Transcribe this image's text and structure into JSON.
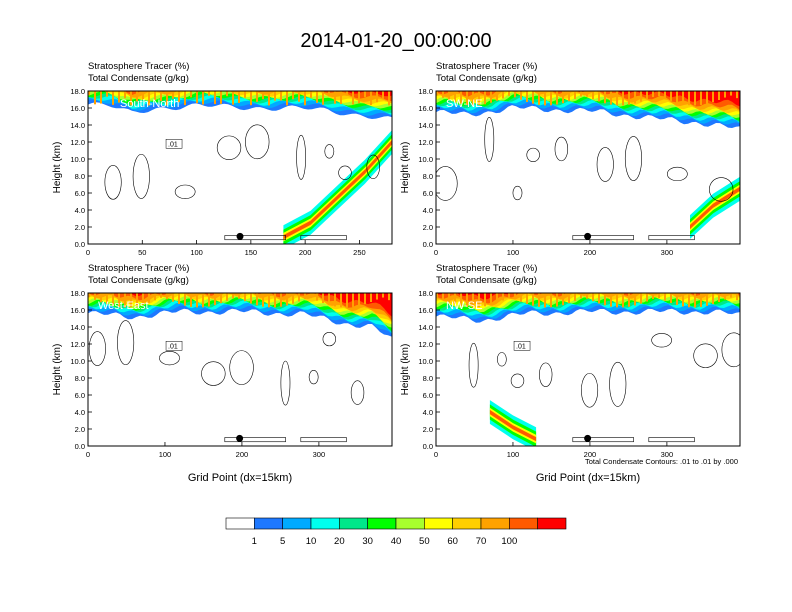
{
  "title": "2014-01-20_00:00:00",
  "colors": {
    "levels": [
      "#ffffff",
      "#1e78ff",
      "#00aaff",
      "#00ffee",
      "#00e88a",
      "#00ff00",
      "#a8ff2e",
      "#ffff00",
      "#ffcf00",
      "#ffa200",
      "#ff5a00",
      "#ff0000"
    ],
    "contour": "#000000"
  },
  "colorbar": {
    "labels": [
      "1",
      "5",
      "10",
      "20",
      "30",
      "40",
      "50",
      "60",
      "70",
      "100"
    ]
  },
  "footnote": "Total Condensate Contours: .01 to .01 by .000",
  "chart_data": [
    {
      "type": "heatmap",
      "subtitle_line1": "Stratosphere Tracer   (%)",
      "subtitle_line2": "Total Condensate   (g/kg)",
      "label": "South-North",
      "ylabel": "Height (km)",
      "xlabel": "",
      "xlim": [
        0,
        280
      ],
      "ylim": [
        0,
        18
      ],
      "xticks": [
        "0",
        "50",
        "100",
        "150",
        "200",
        "250"
      ],
      "xtick_values": [
        0,
        50,
        100,
        150,
        200,
        250
      ],
      "yticks": [
        "0.0",
        "2.0",
        "4.0",
        "6.0",
        "8.0",
        "10.0",
        "12.0",
        "14.0",
        "16.0",
        "18.0"
      ],
      "tropopause_km": [
        [
          0,
          16.4
        ],
        [
          20,
          16.2
        ],
        [
          40,
          15.4
        ],
        [
          60,
          16.0
        ],
        [
          100,
          16.2
        ],
        [
          150,
          16.1
        ],
        [
          200,
          15.9
        ],
        [
          240,
          15.4
        ],
        [
          265,
          15.0
        ],
        [
          280,
          14.6
        ]
      ],
      "intrusion_km": [
        [
          180,
          0.8
        ],
        [
          205,
          2.5
        ],
        [
          230,
          5.5
        ],
        [
          255,
          8.5
        ],
        [
          280,
          12.0
        ]
      ],
      "contour_label": ".01",
      "marker": {
        "x": 140,
        "y": 0.9
      }
    },
    {
      "type": "heatmap",
      "subtitle_line1": "Stratosphere Tracer   (%)",
      "subtitle_line2": "Total Condensate   (g/kg)",
      "label": "SW-NE",
      "ylabel": "Height (km)",
      "xlabel": "",
      "xlim": [
        0,
        395
      ],
      "ylim": [
        0,
        18
      ],
      "xticks": [
        "0",
        "100",
        "200",
        "300"
      ],
      "xtick_values": [
        0,
        100,
        200,
        300
      ],
      "yticks": [
        "0.0",
        "2.0",
        "4.0",
        "6.0",
        "8.0",
        "10.0",
        "12.0",
        "14.0",
        "16.0",
        "18.0"
      ],
      "tropopause_km": [
        [
          0,
          15.5
        ],
        [
          40,
          15.2
        ],
        [
          100,
          16.0
        ],
        [
          160,
          15.8
        ],
        [
          220,
          15.5
        ],
        [
          280,
          14.8
        ],
        [
          340,
          14.3
        ],
        [
          395,
          13.5
        ]
      ],
      "intrusion_km": [
        [
          330,
          2.0
        ],
        [
          360,
          4.5
        ],
        [
          395,
          6.5
        ]
      ],
      "contour_label": "",
      "marker": {
        "x": 197,
        "y": 0.9
      }
    },
    {
      "type": "heatmap",
      "subtitle_line1": "Stratosphere Tracer   (%)",
      "subtitle_line2": "Total Condensate   (g/kg)",
      "label": "West-East",
      "ylabel": "Height (km)",
      "xlabel": "Grid Point (dx=15km)",
      "xlim": [
        0,
        395
      ],
      "ylim": [
        0,
        18
      ],
      "xticks": [
        "0",
        "100",
        "200",
        "300"
      ],
      "xtick_values": [
        0,
        100,
        200,
        300
      ],
      "yticks": [
        "0.0",
        "2.0",
        "4.0",
        "6.0",
        "8.0",
        "10.0",
        "12.0",
        "14.0",
        "16.0",
        "18.0"
      ],
      "tropopause_km": [
        [
          0,
          15.6
        ],
        [
          60,
          15.2
        ],
        [
          120,
          15.8
        ],
        [
          200,
          15.8
        ],
        [
          280,
          15.5
        ],
        [
          330,
          14.5
        ],
        [
          370,
          14.0
        ],
        [
          395,
          12.5
        ]
      ],
      "intrusion_km": [],
      "contour_label": ".01",
      "marker": {
        "x": 197,
        "y": 0.9
      }
    },
    {
      "type": "heatmap",
      "subtitle_line1": "Stratosphere Tracer   (%)",
      "subtitle_line2": "Total Condensate   (g/kg)",
      "label": "NW-SE",
      "ylabel": "Height (km)",
      "xlabel": "Grid Point (dx=15km)",
      "xlim": [
        0,
        395
      ],
      "ylim": [
        0,
        18
      ],
      "xticks": [
        "0",
        "100",
        "200",
        "300"
      ],
      "xtick_values": [
        0,
        100,
        200,
        300
      ],
      "yticks": [
        "0.0",
        "2.0",
        "4.0",
        "6.0",
        "8.0",
        "10.0",
        "12.0",
        "14.0",
        "16.0",
        "18.0"
      ],
      "tropopause_km": [
        [
          0,
          15.2
        ],
        [
          60,
          14.8
        ],
        [
          120,
          15.6
        ],
        [
          200,
          15.8
        ],
        [
          280,
          15.8
        ],
        [
          360,
          15.8
        ],
        [
          395,
          15.4
        ]
      ],
      "intrusion_km": [
        [
          70,
          4.0
        ],
        [
          100,
          2.2
        ],
        [
          130,
          0.8
        ]
      ],
      "contour_label": ".01",
      "marker": {
        "x": 197,
        "y": 0.9
      }
    }
  ]
}
